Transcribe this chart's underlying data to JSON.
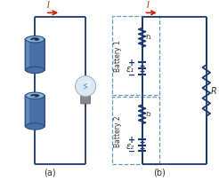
{
  "bg_color": "#ffffff",
  "wire_color": "#1a3870",
  "resistor_color": "#1a3870",
  "battery_color": "#1a3870",
  "arrow_color": "#cc2200",
  "dashed_box_color": "#6699bb",
  "text_color": "#333333",
  "label_a": "(a)",
  "label_b": "(b)",
  "current_label": "I",
  "battery1_label": "Battery 1",
  "battery2_label": "Battery 2",
  "r1_label": "r₁",
  "r2_label": "r₂",
  "eps1_label": "ε₁",
  "eps2_label": "ε₂",
  "R_label": "R",
  "cyl_body_color": "#4a6fa5",
  "cyl_top_color": "#8ab4d8",
  "cyl_rim_color": "#2a4f85",
  "cyl_inner_color": "#1a2f55",
  "bulb_glass_color": "#d8eaf8",
  "bulb_base_color": "#b0b0b0",
  "bulb_cap_color": "#888888"
}
